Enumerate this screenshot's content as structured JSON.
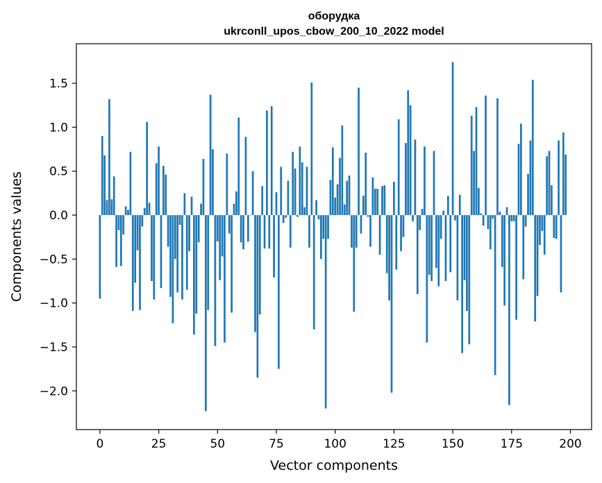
{
  "chart_data": {
    "type": "bar",
    "title": "оборудка",
    "subtitle": "ukrconll_upos_cbow_200_10_2022 model",
    "xlabel": "Vector components",
    "ylabel": "Components values",
    "xlim": [
      -10,
      209
    ],
    "ylim": [
      -2.44,
      1.95
    ],
    "x_ticks": [
      0,
      25,
      50,
      75,
      100,
      125,
      150,
      175,
      200
    ],
    "y_ticks": [
      -2.0,
      -1.5,
      -1.0,
      -0.5,
      0.0,
      0.5,
      1.0,
      1.5
    ],
    "y_tick_labels": [
      "−2.0",
      "−1.5",
      "−1.0",
      "−0.5",
      "0.0",
      "0.5",
      "1.0",
      "1.5"
    ],
    "bar_color": "#1f77b4",
    "values": [
      -0.95,
      0.9,
      0.68,
      0.17,
      1.32,
      0.18,
      0.44,
      -0.59,
      -0.17,
      -0.58,
      -0.22,
      0.1,
      0.06,
      0.72,
      -1.09,
      -0.77,
      -0.4,
      -1.08,
      -0.13,
      0.08,
      1.06,
      0.14,
      -0.75,
      -0.96,
      0.59,
      0.78,
      -0.83,
      0.56,
      0.46,
      -0.36,
      -0.93,
      -1.23,
      -0.5,
      -0.88,
      -0.11,
      -0.96,
      0.25,
      -0.85,
      -0.41,
      0.21,
      -1.36,
      -1.12,
      -0.31,
      0.13,
      0.64,
      -2.23,
      -1.08,
      1.37,
      0.75,
      -1.49,
      -0.3,
      -0.74,
      -0.47,
      -1.45,
      0.7,
      -0.21,
      -1.11,
      0.13,
      0.27,
      1.11,
      -0.31,
      -0.39,
      0.89,
      -0.3,
      0.0,
      0.5,
      -1.33,
      -1.85,
      -1.13,
      0.33,
      -0.38,
      1.19,
      -0.38,
      1.24,
      -0.71,
      0.26,
      -1.75,
      0.55,
      -0.09,
      -0.03,
      0.39,
      -0.37,
      0.72,
      0.53,
      -0.02,
      0.78,
      0.6,
      0.09,
      0.55,
      -0.37,
      1.51,
      -1.3,
      0.17,
      -0.05,
      -0.5,
      -0.27,
      -2.2,
      -0.27,
      0.4,
      0.77,
      0.2,
      0.35,
      0.65,
      1.02,
      0.12,
      0.39,
      0.45,
      -0.37,
      -1.1,
      -0.37,
      1.45,
      -0.21,
      0.22,
      0.71,
      -0.02,
      -0.36,
      0.43,
      0.3,
      0.3,
      -0.45,
      0.33,
      0.34,
      -0.66,
      -0.97,
      -2.02,
      0.38,
      -0.62,
      1.09,
      -0.41,
      -0.25,
      0.82,
      1.42,
      1.25,
      -0.07,
      0.86,
      -0.9,
      -0.17,
      0.07,
      0.78,
      -1.45,
      -0.68,
      -0.75,
      0.73,
      -0.6,
      -0.81,
      -0.27,
      0.05,
      -0.75,
      0.22,
      -0.65,
      1.74,
      -0.06,
      -0.97,
      0.23,
      -1.57,
      -0.74,
      -1.09,
      -1.47,
      1.13,
      0.73,
      1.23,
      0.31,
      0.02,
      -0.12,
      1.36,
      -0.16,
      -0.39,
      -0.04,
      -1.82,
      1.33,
      0.04,
      -0.59,
      -1.03,
      0.09,
      -2.16,
      -0.07,
      -0.07,
      -1.19,
      0.81,
      1.04,
      -0.73,
      -0.13,
      0.47,
      0.85,
      1.54,
      -1.21,
      -0.92,
      -0.34,
      -0.18,
      -0.45,
      0.67,
      0.73,
      0.34,
      -0.26,
      -0.27,
      0.85,
      -0.88,
      0.94,
      0.69
    ]
  }
}
